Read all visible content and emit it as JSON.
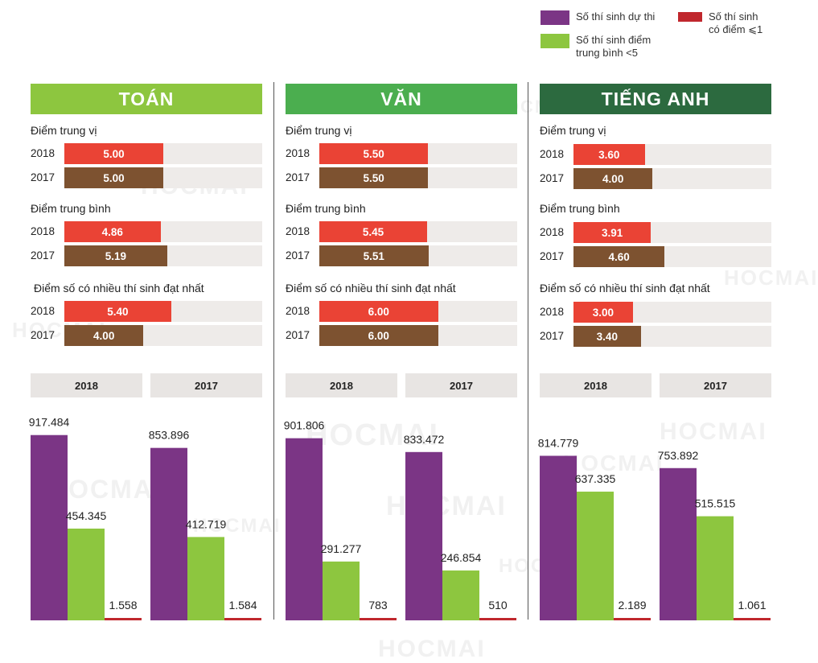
{
  "legend": {
    "items": [
      {
        "label": "Số thí sinh dự thi",
        "color": "#7b3585"
      },
      {
        "label": "Số thí sinh điểm\ntrung bình <5",
        "color": "#8dc63f"
      },
      {
        "label": "Số thí sinh\ncó điểm ⩽1",
        "color": "#c0272d"
      }
    ]
  },
  "watermark": "HOCMAI",
  "colors": {
    "bar_2018": "#ea4335",
    "bar_2017": "#7d5230"
  },
  "subjects": [
    {
      "name": "TOÁN",
      "banner_color": "#8dc63f",
      "metrics": [
        {
          "title": "Điểm trung vị",
          "rows": [
            {
              "year": "2018",
              "value": 5.0,
              "label": "5.00"
            },
            {
              "year": "2017",
              "value": 5.0,
              "label": "5.00"
            }
          ]
        },
        {
          "title": "Điểm trung bình",
          "rows": [
            {
              "year": "2018",
              "value": 4.86,
              "label": "4.86"
            },
            {
              "year": "2017",
              "value": 5.19,
              "label": "5.19"
            }
          ]
        },
        {
          "title": "Điểm số có nhiều thí sinh đạt nhất",
          "rows": [
            {
              "year": "2018",
              "value": 5.4,
              "label": "5.40"
            },
            {
              "year": "2017",
              "value": 4.0,
              "label": "4.00"
            }
          ]
        }
      ]
    },
    {
      "name": "VĂN",
      "banner_color": "#4bae4f",
      "metrics": [
        {
          "title": "Điểm trung vị",
          "rows": [
            {
              "year": "2018",
              "value": 5.5,
              "label": "5.50"
            },
            {
              "year": "2017",
              "value": 5.5,
              "label": "5.50"
            }
          ]
        },
        {
          "title": "Điểm trung bình",
          "rows": [
            {
              "year": "2018",
              "value": 5.45,
              "label": "5.45"
            },
            {
              "year": "2017",
              "value": 5.51,
              "label": "5.51"
            }
          ]
        },
        {
          "title": "Điểm số có nhiều thí sinh đạt nhất",
          "rows": [
            {
              "year": "2018",
              "value": 6.0,
              "label": "6.00"
            },
            {
              "year": "2017",
              "value": 6.0,
              "label": "6.00"
            }
          ]
        }
      ]
    },
    {
      "name": "TIẾNG ANH",
      "banner_color": "#2c6a3f",
      "metrics": [
        {
          "title": "Điểm trung vị",
          "rows": [
            {
              "year": "2018",
              "value": 3.6,
              "label": "3.60"
            },
            {
              "year": "2017",
              "value": 4.0,
              "label": "4.00"
            }
          ]
        },
        {
          "title": "Điểm trung bình",
          "rows": [
            {
              "year": "2018",
              "value": 3.91,
              "label": "3.91"
            },
            {
              "year": "2017",
              "value": 4.6,
              "label": "4.60"
            }
          ]
        },
        {
          "title": "Điểm số có nhiều thí sinh đạt nhất",
          "rows": [
            {
              "year": "2018",
              "value": 3.0,
              "label": "3.00"
            },
            {
              "year": "2017",
              "value": 3.4,
              "label": "3.40"
            }
          ]
        }
      ]
    }
  ],
  "chart_data": [
    {
      "type": "bar",
      "subject": "TOÁN",
      "categories": [
        "2018",
        "2017"
      ],
      "ylim": [
        0,
        1000000
      ],
      "series": [
        {
          "name": "Số thí sinh dự thi",
          "values": [
            917484,
            853896
          ],
          "labels": [
            "917.484",
            "853.896"
          ]
        },
        {
          "name": "Số thí sinh điểm trung bình <5",
          "values": [
            454345,
            412719
          ],
          "labels": [
            "454.345",
            "412.719"
          ]
        },
        {
          "name": "Số thí sinh có điểm ⩽1",
          "values": [
            1558,
            1584
          ],
          "labels": [
            "1.558",
            "1.584"
          ]
        }
      ]
    },
    {
      "type": "bar",
      "subject": "VĂN",
      "categories": [
        "2018",
        "2017"
      ],
      "ylim": [
        0,
        1000000
      ],
      "series": [
        {
          "name": "Số thí sinh dự thi",
          "values": [
            901806,
            833472
          ],
          "labels": [
            "901.806",
            "833.472"
          ]
        },
        {
          "name": "Số thí sinh điểm trung bình <5",
          "values": [
            291277,
            246854
          ],
          "labels": [
            "291.277",
            "246.854"
          ]
        },
        {
          "name": "Số thí sinh có điểm ⩽1",
          "values": [
            783,
            510
          ],
          "labels": [
            "783",
            "510"
          ]
        }
      ]
    },
    {
      "type": "bar",
      "subject": "TIẾNG ANH",
      "categories": [
        "2018",
        "2017"
      ],
      "ylim": [
        0,
        1000000
      ],
      "series": [
        {
          "name": "Số thí sinh dự thi",
          "values": [
            814779,
            753892
          ],
          "labels": [
            "814.779",
            "753.892"
          ]
        },
        {
          "name": "Số thí sinh điểm trung bình <5",
          "values": [
            637335,
            515515
          ],
          "labels": [
            "637.335",
            "515.515"
          ]
        },
        {
          "name": "Số thí sinh có điểm ⩽1",
          "values": [
            2189,
            1061
          ],
          "labels": [
            "2.189",
            "1.061"
          ]
        }
      ]
    }
  ]
}
